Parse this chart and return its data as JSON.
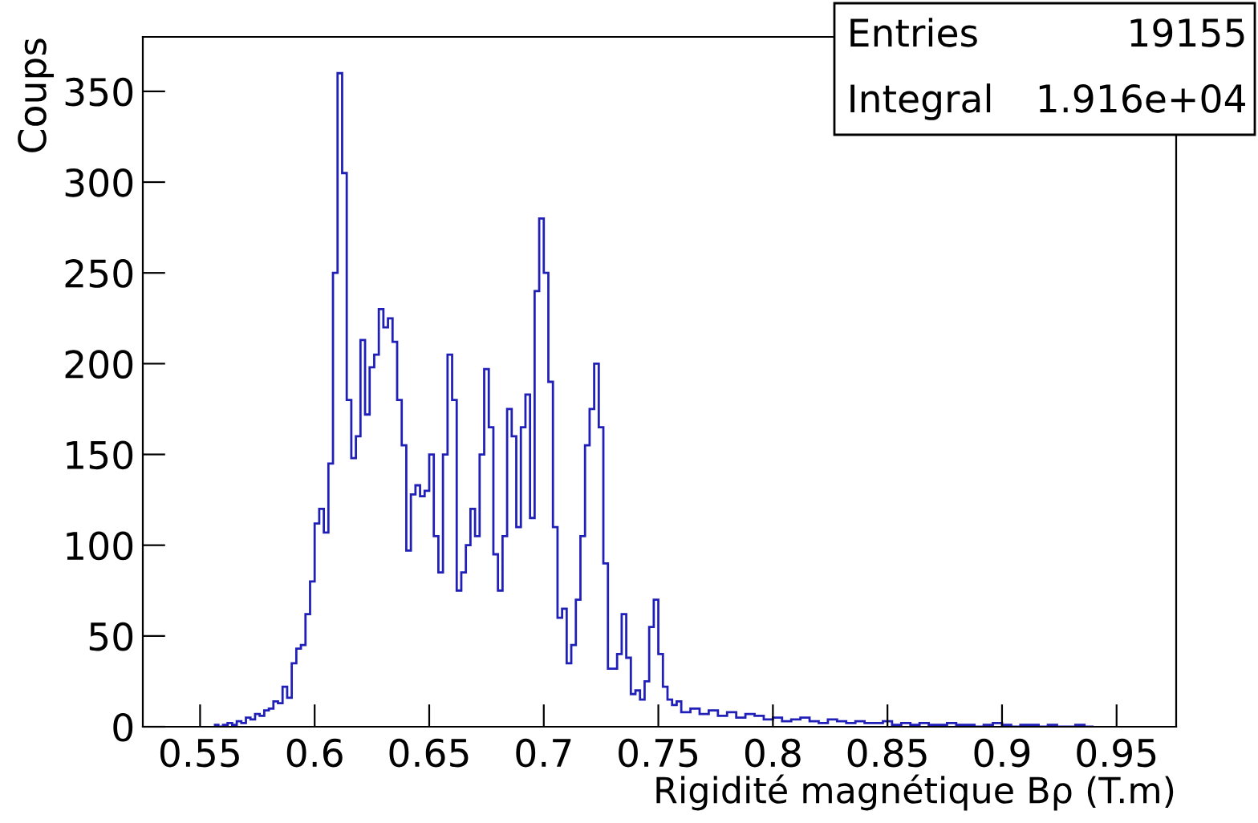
{
  "chart_data": {
    "type": "histogram",
    "xlabel": "Rigidité magnétique Bρ (T.m)",
    "ylabel": "Coups",
    "annotations": [
      "Entries",
      "19155",
      "Integral",
      "1.916e+04"
    ],
    "color": "#2020b8",
    "bins": [
      0.556,
      0.558,
      0.56,
      0.562,
      0.564,
      0.566,
      0.568,
      0.57,
      0.572,
      0.574,
      0.576,
      0.578,
      0.58,
      0.582,
      0.584,
      0.586,
      0.588,
      0.59,
      0.592,
      0.594,
      0.596,
      0.598,
      0.6,
      0.602,
      0.604,
      0.606,
      0.608,
      0.61,
      0.612,
      0.614,
      0.616,
      0.618,
      0.62,
      0.622,
      0.624,
      0.626,
      0.628,
      0.63,
      0.632,
      0.634,
      0.636,
      0.638,
      0.64,
      0.642,
      0.644,
      0.646,
      0.648,
      0.65,
      0.652,
      0.654,
      0.656,
      0.658,
      0.66,
      0.662,
      0.664,
      0.666,
      0.668,
      0.67,
      0.672,
      0.674,
      0.676,
      0.678,
      0.68,
      0.682,
      0.684,
      0.686,
      0.688,
      0.69,
      0.692,
      0.694,
      0.696,
      0.698,
      0.7,
      0.702,
      0.704,
      0.706,
      0.708,
      0.71,
      0.712,
      0.714,
      0.716,
      0.718,
      0.72,
      0.722,
      0.724,
      0.726,
      0.728,
      0.73,
      0.732,
      0.734,
      0.736,
      0.738,
      0.74,
      0.742,
      0.744,
      0.746,
      0.748,
      0.75,
      0.752,
      0.754,
      0.756,
      0.758,
      0.76,
      0.764,
      0.768,
      0.772,
      0.776,
      0.78,
      0.784,
      0.788,
      0.792,
      0.796,
      0.8,
      0.804,
      0.808,
      0.812,
      0.816,
      0.82,
      0.824,
      0.828,
      0.832,
      0.836,
      0.84,
      0.844,
      0.848,
      0.852,
      0.856,
      0.86,
      0.864,
      0.868,
      0.872,
      0.876,
      0.88,
      0.884,
      0.888,
      0.892,
      0.896,
      0.9,
      0.904,
      0.908,
      0.912,
      0.916,
      0.92,
      0.924,
      0.928,
      0.932,
      0.936,
      0.94
    ],
    "values": [
      1,
      0,
      1,
      2,
      1,
      3,
      2,
      5,
      4,
      7,
      6,
      9,
      10,
      14,
      13,
      22,
      16,
      35,
      43,
      45,
      62,
      80,
      112,
      120,
      107,
      145,
      250,
      360,
      305,
      180,
      148,
      160,
      213,
      172,
      198,
      205,
      230,
      220,
      225,
      212,
      180,
      155,
      97,
      128,
      133,
      127,
      130,
      150,
      105,
      85,
      150,
      205,
      180,
      75,
      85,
      100,
      120,
      105,
      150,
      197,
      165,
      95,
      75,
      105,
      175,
      160,
      110,
      165,
      183,
      115,
      240,
      280,
      250,
      190,
      110,
      60,
      65,
      35,
      45,
      70,
      105,
      155,
      175,
      200,
      165,
      90,
      32,
      32,
      40,
      62,
      38,
      18,
      20,
      15,
      25,
      55,
      70,
      40,
      22,
      15,
      12,
      14,
      8,
      10,
      7,
      9,
      6,
      8,
      5,
      7,
      6,
      4,
      5,
      3,
      4,
      5,
      3,
      2,
      4,
      3,
      2,
      3,
      2,
      2,
      3,
      1,
      2,
      1,
      2,
      1,
      1,
      2,
      1,
      1,
      0,
      1,
      2,
      1,
      0,
      1,
      1,
      0,
      1,
      0,
      0,
      1,
      0
    ],
    "xlim": [
      0.525,
      0.976
    ],
    "ylim": [
      0,
      380
    ],
    "xticks": [
      {
        "value": 0.55,
        "label": "0.55"
      },
      {
        "value": 0.6,
        "label": "0.6"
      },
      {
        "value": 0.65,
        "label": "0.65"
      },
      {
        "value": 0.7,
        "label": "0.7"
      },
      {
        "value": 0.75,
        "label": "0.75"
      },
      {
        "value": 0.8,
        "label": "0.8"
      },
      {
        "value": 0.85,
        "label": "0.85"
      },
      {
        "value": 0.9,
        "label": "0.9"
      },
      {
        "value": 0.95,
        "label": "0.95"
      }
    ],
    "yticks": [
      0,
      50,
      100,
      150,
      200,
      250,
      300,
      350
    ],
    "grid": false
  }
}
